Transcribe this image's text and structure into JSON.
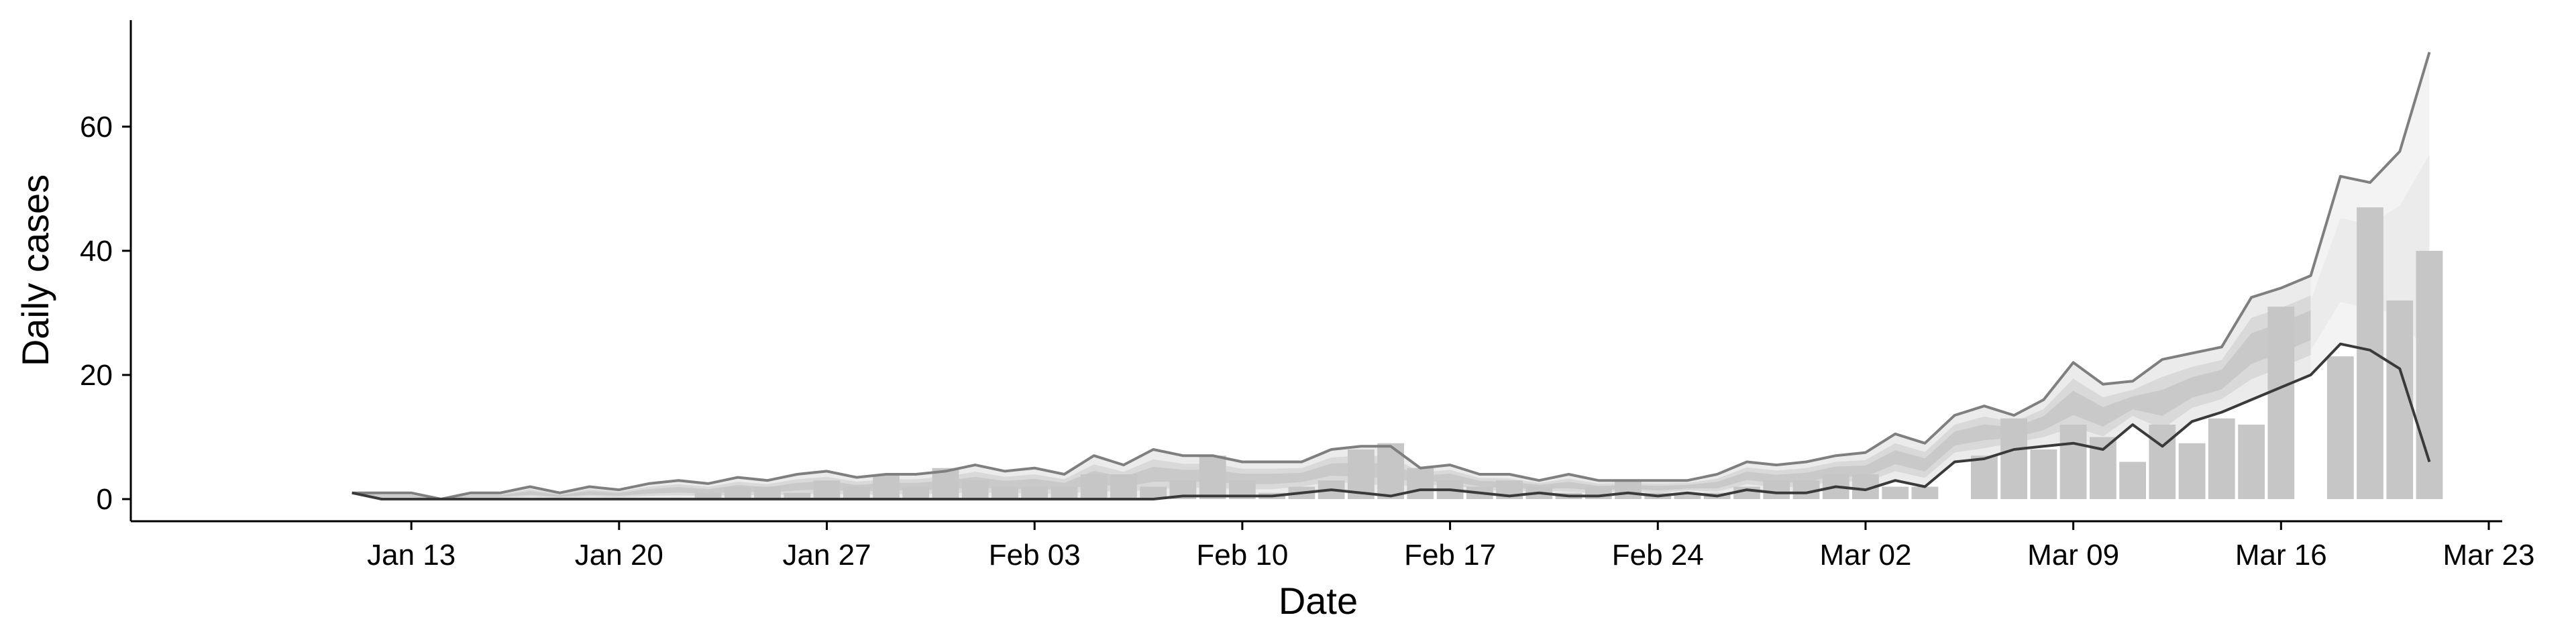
{
  "chart_data": {
    "type": "bar",
    "xlabel": "Date",
    "ylabel": "Daily cases",
    "ylim": [
      0,
      75
    ],
    "yticks": [
      0,
      20,
      40,
      60
    ],
    "x_range": [
      "2020-01-04",
      "2020-03-23"
    ],
    "xtick_labels": [
      {
        "date": "2020-01-13",
        "label": "Jan 13"
      },
      {
        "date": "2020-01-20",
        "label": "Jan 20"
      },
      {
        "date": "2020-01-27",
        "label": "Jan 27"
      },
      {
        "date": "2020-02-03",
        "label": "Feb 03"
      },
      {
        "date": "2020-02-10",
        "label": "Feb 10"
      },
      {
        "date": "2020-02-17",
        "label": "Feb 17"
      },
      {
        "date": "2020-02-24",
        "label": "Feb 24"
      },
      {
        "date": "2020-03-02",
        "label": "Mar 02"
      },
      {
        "date": "2020-03-09",
        "label": "Mar 09"
      },
      {
        "date": "2020-03-16",
        "label": "Mar 16"
      },
      {
        "date": "2020-03-23",
        "label": "Mar 23"
      }
    ],
    "grid": false,
    "legend": "none",
    "colors": {
      "bars": "#c6c6c6",
      "band_outer": "#ebebeb",
      "band_mid": "#d9d9d9",
      "band_inner": "#c9c9c9",
      "projection": "#f3f3f3",
      "upper_line": "#7f7f7f",
      "lower_line": "#3a3a3a",
      "axis": "#000000"
    },
    "bars": {
      "dates": [
        "2020-01-11",
        "2020-01-12",
        "2020-01-13",
        "2020-01-14",
        "2020-01-15",
        "2020-01-16",
        "2020-01-17",
        "2020-01-18",
        "2020-01-19",
        "2020-01-20",
        "2020-01-21",
        "2020-01-22",
        "2020-01-23",
        "2020-01-24",
        "2020-01-25",
        "2020-01-26",
        "2020-01-27",
        "2020-01-28",
        "2020-01-29",
        "2020-01-30",
        "2020-01-31",
        "2020-02-01",
        "2020-02-02",
        "2020-02-03",
        "2020-02-04",
        "2020-02-05",
        "2020-02-06",
        "2020-02-07",
        "2020-02-08",
        "2020-02-09",
        "2020-02-10",
        "2020-02-11",
        "2020-02-12",
        "2020-02-13",
        "2020-02-14",
        "2020-02-15",
        "2020-02-16",
        "2020-02-17",
        "2020-02-18",
        "2020-02-19",
        "2020-02-20",
        "2020-02-21",
        "2020-02-22",
        "2020-02-23",
        "2020-02-24",
        "2020-02-25",
        "2020-02-26",
        "2020-02-27",
        "2020-02-28",
        "2020-02-29",
        "2020-03-01",
        "2020-03-02",
        "2020-03-03",
        "2020-03-04",
        "2020-03-05",
        "2020-03-06",
        "2020-03-07",
        "2020-03-08",
        "2020-03-09",
        "2020-03-10",
        "2020-03-11",
        "2020-03-12",
        "2020-03-13",
        "2020-03-14",
        "2020-03-15",
        "2020-03-16",
        "2020-03-17",
        "2020-03-18",
        "2020-03-19",
        "2020-03-20",
        "2020-03-21",
        "2020-03-22"
      ],
      "values": [
        0,
        0,
        0,
        0,
        0,
        0,
        0,
        0,
        0,
        0,
        0,
        0,
        1,
        2,
        2,
        1,
        3,
        2,
        4,
        2,
        5,
        3,
        2,
        2,
        2,
        4,
        4,
        2,
        3,
        7,
        3,
        1,
        2,
        3,
        8,
        9,
        5,
        3,
        2,
        3,
        2,
        1,
        2,
        3,
        1,
        1,
        1,
        2,
        3,
        3,
        4,
        4,
        2,
        2,
        0,
        7,
        13,
        8,
        12,
        10,
        6,
        12,
        9,
        13,
        12,
        31,
        0,
        23,
        47,
        32,
        40,
        0
      ]
    },
    "upper_line": {
      "dates": [
        "2020-01-11",
        "2020-01-12",
        "2020-01-13",
        "2020-01-14",
        "2020-01-15",
        "2020-01-16",
        "2020-01-17",
        "2020-01-18",
        "2020-01-19",
        "2020-01-20",
        "2020-01-21",
        "2020-01-22",
        "2020-01-23",
        "2020-01-24",
        "2020-01-25",
        "2020-01-26",
        "2020-01-27",
        "2020-01-28",
        "2020-01-29",
        "2020-01-30",
        "2020-01-31",
        "2020-02-01",
        "2020-02-02",
        "2020-02-03",
        "2020-02-04",
        "2020-02-05",
        "2020-02-06",
        "2020-02-07",
        "2020-02-08",
        "2020-02-09",
        "2020-02-10",
        "2020-02-11",
        "2020-02-12",
        "2020-02-13",
        "2020-02-14",
        "2020-02-15",
        "2020-02-16",
        "2020-02-17",
        "2020-02-18",
        "2020-02-19",
        "2020-02-20",
        "2020-02-21",
        "2020-02-22",
        "2020-02-23",
        "2020-02-24",
        "2020-02-25",
        "2020-02-26",
        "2020-02-27",
        "2020-02-28",
        "2020-02-29",
        "2020-03-01",
        "2020-03-02",
        "2020-03-03",
        "2020-03-04",
        "2020-03-05",
        "2020-03-06",
        "2020-03-07",
        "2020-03-08",
        "2020-03-09",
        "2020-03-10",
        "2020-03-11",
        "2020-03-12",
        "2020-03-13",
        "2020-03-14",
        "2020-03-15",
        "2020-03-16",
        "2020-03-17",
        "2020-03-18",
        "2020-03-19",
        "2020-03-20",
        "2020-03-21",
        "2020-03-22"
      ],
      "values": [
        1,
        1,
        1,
        0,
        1,
        1,
        2,
        1,
        2,
        1.5,
        2.5,
        3,
        2.5,
        3.5,
        3,
        4,
        4.5,
        3.5,
        4,
        4,
        4.5,
        5.5,
        4.5,
        5,
        4,
        7,
        5.5,
        8,
        7,
        7,
        6,
        6,
        6,
        8,
        8.5,
        8.5,
        5,
        5.5,
        4,
        4,
        3,
        4,
        3,
        3,
        3,
        3,
        4,
        6,
        5.5,
        6,
        7,
        7.5,
        10.5,
        9,
        13.5,
        15,
        13.5,
        16,
        22,
        18.5,
        19,
        22.5,
        23.5,
        24.5,
        32.5,
        34,
        36,
        52,
        51,
        56,
        72,
        0
      ]
    },
    "lower_line": {
      "dates": [
        "2020-01-11",
        "2020-01-12",
        "2020-01-13",
        "2020-01-14",
        "2020-01-15",
        "2020-01-16",
        "2020-01-17",
        "2020-01-18",
        "2020-01-19",
        "2020-01-20",
        "2020-01-21",
        "2020-01-22",
        "2020-01-23",
        "2020-01-24",
        "2020-01-25",
        "2020-01-26",
        "2020-01-27",
        "2020-01-28",
        "2020-01-29",
        "2020-01-30",
        "2020-01-31",
        "2020-02-01",
        "2020-02-02",
        "2020-02-03",
        "2020-02-04",
        "2020-02-05",
        "2020-02-06",
        "2020-02-07",
        "2020-02-08",
        "2020-02-09",
        "2020-02-10",
        "2020-02-11",
        "2020-02-12",
        "2020-02-13",
        "2020-02-14",
        "2020-02-15",
        "2020-02-16",
        "2020-02-17",
        "2020-02-18",
        "2020-02-19",
        "2020-02-20",
        "2020-02-21",
        "2020-02-22",
        "2020-02-23",
        "2020-02-24",
        "2020-02-25",
        "2020-02-26",
        "2020-02-27",
        "2020-02-28",
        "2020-02-29",
        "2020-03-01",
        "2020-03-02",
        "2020-03-03",
        "2020-03-04",
        "2020-03-05",
        "2020-03-06",
        "2020-03-07",
        "2020-03-08",
        "2020-03-09",
        "2020-03-10",
        "2020-03-11",
        "2020-03-12",
        "2020-03-13",
        "2020-03-14",
        "2020-03-15",
        "2020-03-16",
        "2020-03-17",
        "2020-03-18",
        "2020-03-19",
        "2020-03-20",
        "2020-03-21",
        "2020-03-22"
      ],
      "values": [
        1,
        0,
        0,
        0,
        0,
        0,
        0,
        0,
        0,
        0,
        0,
        0,
        0,
        0,
        0,
        0,
        0,
        0,
        0,
        0,
        0,
        0,
        0,
        0,
        0,
        0,
        0,
        0,
        0.5,
        0.5,
        0.5,
        0.5,
        1,
        1.5,
        1,
        0.5,
        1.5,
        1.5,
        1,
        0.5,
        1,
        0.5,
        0.5,
        1,
        0.5,
        1,
        0.5,
        1.5,
        1,
        1,
        2,
        1.5,
        3,
        2,
        6,
        6.5,
        8,
        8.5,
        9,
        8,
        12,
        8.5,
        12.5,
        14,
        16,
        18,
        20,
        25,
        24,
        21,
        6,
        0
      ]
    },
    "projection_start_date": "2020-03-17"
  }
}
